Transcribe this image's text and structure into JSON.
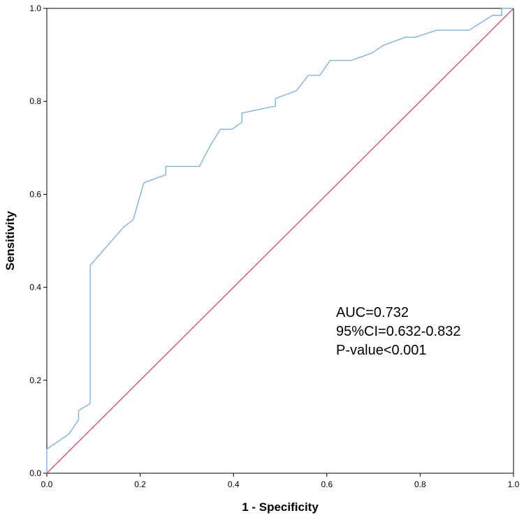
{
  "chart_data": {
    "type": "line",
    "title": "",
    "xlabel": "1 - Specificity",
    "ylabel": "Sensitivity",
    "xlim": [
      0,
      1
    ],
    "ylim": [
      0,
      1
    ],
    "x_ticks": [
      "0.0",
      "0.2",
      "0.4",
      "0.6",
      "0.8",
      "1.0"
    ],
    "y_ticks": [
      "0.0",
      "0.2",
      "0.4",
      "0.6",
      "0.8",
      "1.0"
    ],
    "grid": false,
    "series": [
      {
        "color": "#7fb2e5",
        "points": [
          [
            0.0,
            0.0
          ],
          [
            0.0,
            0.052
          ],
          [
            0.047,
            0.084
          ],
          [
            0.068,
            0.115
          ],
          [
            0.068,
            0.135
          ],
          [
            0.093,
            0.15
          ],
          [
            0.093,
            0.447
          ],
          [
            0.165,
            0.53
          ],
          [
            0.185,
            0.545
          ],
          [
            0.208,
            0.625
          ],
          [
            0.255,
            0.642
          ],
          [
            0.255,
            0.66
          ],
          [
            0.327,
            0.66
          ],
          [
            0.352,
            0.708
          ],
          [
            0.372,
            0.74
          ],
          [
            0.397,
            0.74
          ],
          [
            0.418,
            0.755
          ],
          [
            0.418,
            0.775
          ],
          [
            0.49,
            0.79
          ],
          [
            0.49,
            0.806
          ],
          [
            0.535,
            0.823
          ],
          [
            0.56,
            0.856
          ],
          [
            0.585,
            0.856
          ],
          [
            0.607,
            0.888
          ],
          [
            0.652,
            0.888
          ],
          [
            0.697,
            0.904
          ],
          [
            0.72,
            0.92
          ],
          [
            0.768,
            0.938
          ],
          [
            0.79,
            0.938
          ],
          [
            0.835,
            0.953
          ],
          [
            0.905,
            0.953
          ],
          [
            0.955,
            0.985
          ],
          [
            0.975,
            0.985
          ],
          [
            0.975,
            1.0
          ],
          [
            1.0,
            1.0
          ]
        ]
      },
      {
        "color": "#d94f6c",
        "points": [
          [
            0,
            0
          ],
          [
            1,
            1
          ]
        ]
      }
    ],
    "annotations": [
      "AUC=0.732",
      "95%CI=0.632-0.832",
      "P-value<0.001"
    ]
  }
}
